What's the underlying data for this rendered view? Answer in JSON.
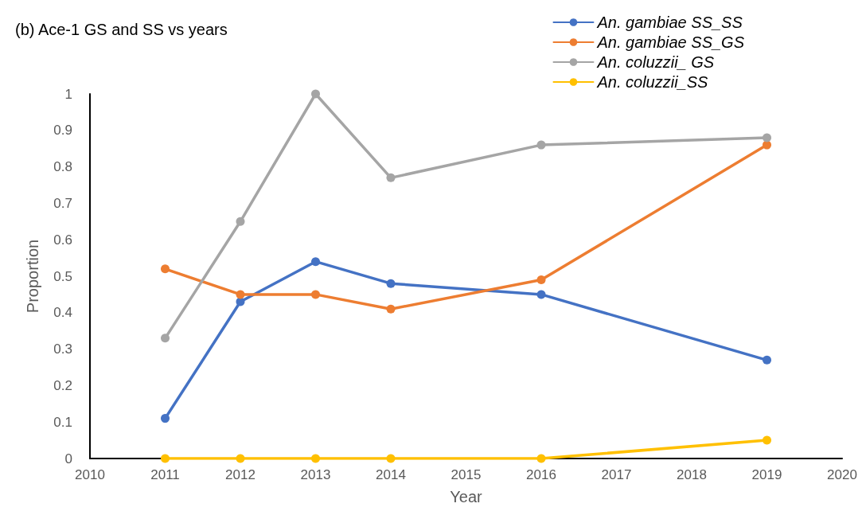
{
  "chart_data": {
    "type": "line",
    "title": "(b) Ace-1 GS and SS vs years",
    "xlabel": "Year",
    "ylabel": "Proportion",
    "x": [
      2011,
      2012,
      2013,
      2014,
      2016,
      2019
    ],
    "series": [
      {
        "name": "An. gambiae SS_SS",
        "color": "#4472c4",
        "values": [
          0.11,
          0.43,
          0.54,
          0.48,
          0.45,
          0.27
        ]
      },
      {
        "name": "An. gambiae SS_GS",
        "color": "#ed7d31",
        "values": [
          0.52,
          0.45,
          0.45,
          0.41,
          0.49,
          0.86
        ]
      },
      {
        "name": "An. coluzzii_ GS",
        "color": "#a5a5a5",
        "values": [
          0.33,
          0.65,
          1,
          0.77,
          0.86,
          0.88
        ]
      },
      {
        "name": "An. coluzzii_SS",
        "color": "#ffc000",
        "values": [
          0,
          0,
          0,
          0,
          0,
          0.05
        ]
      }
    ],
    "xlim": [
      2010,
      2020
    ],
    "xticks": [
      2010,
      2011,
      2012,
      2013,
      2014,
      2015,
      2016,
      2017,
      2018,
      2019,
      2020
    ],
    "ylim": [
      0,
      1
    ],
    "yticks": [
      0,
      0.1,
      0.2,
      0.3,
      0.4,
      0.5,
      0.6,
      0.7,
      0.8,
      0.9,
      1
    ],
    "grid": false,
    "legend": "top right",
    "marker": "circle",
    "line_style": "solid"
  }
}
